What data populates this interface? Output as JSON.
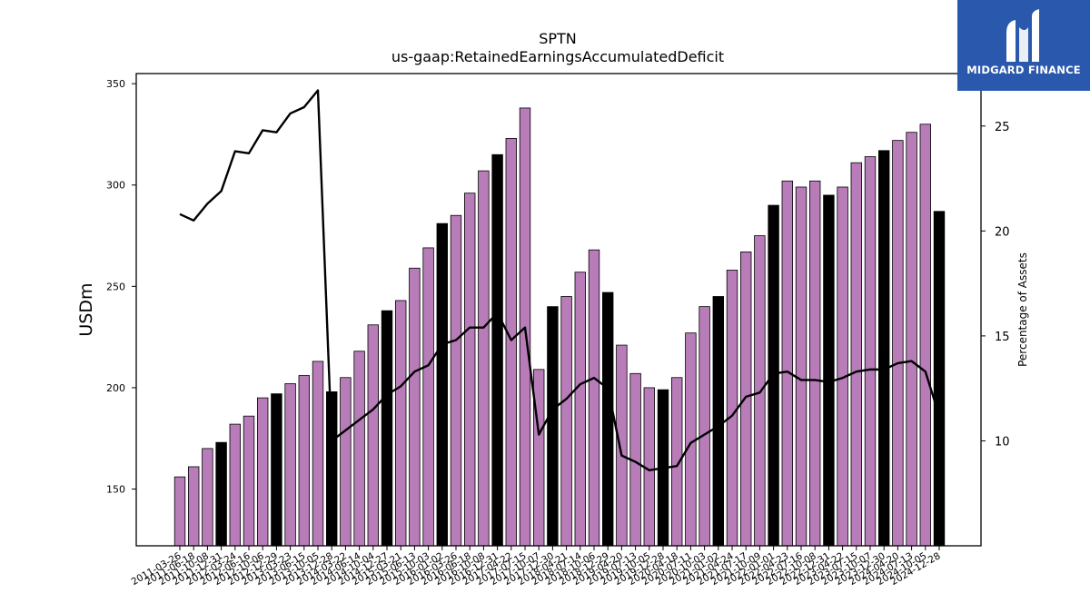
{
  "brand": {
    "name": "MIDGARD FINANCE",
    "logo_color": "#2a58ad"
  },
  "chart_data": {
    "type": "bar",
    "title": "SPTN",
    "subtitle": "us-gaap:RetainedEarningsAccumulatedDeficit",
    "ylabel": "USDm",
    "y2label": "Percentage of Assets",
    "ylim": [
      122,
      355
    ],
    "y2lim": [
      5.0,
      27.5
    ],
    "yticks": [
      150,
      200,
      250,
      300,
      350
    ],
    "y2ticks": [
      10,
      15,
      20,
      25
    ],
    "bar_colors": {
      "quarter": "#b87cb9",
      "year_end": "#000000"
    },
    "categories": [
      "2011-03-26",
      "2011-06-18",
      "2011-10-08",
      "2011-12-31",
      "2012-03-24",
      "2012-06-16",
      "2012-10-06",
      "2012-12-29",
      "2013-03-23",
      "2013-06-15",
      "2013-10-05",
      "2013-12-28",
      "2014-03-22",
      "2014-06-14",
      "2014-10-04",
      "2014-12-27",
      "2015-03-21",
      "2015-06-13",
      "2015-10-03",
      "2016-01-02",
      "2016-03-26",
      "2016-06-18",
      "2016-10-08",
      "2016-12-31",
      "2017-04-22",
      "2017-07-15",
      "2017-10-07",
      "2017-12-30",
      "2018-04-21",
      "2018-07-14",
      "2018-10-06",
      "2018-12-29",
      "2019-04-20",
      "2019-07-13",
      "2019-10-05",
      "2019-12-28",
      "2020-04-18",
      "2020-07-11",
      "2020-10-03",
      "2021-01-02",
      "2021-04-24",
      "2021-07-17",
      "2021-10-09",
      "2022-01-01",
      "2022-04-23",
      "2022-07-16",
      "2022-10-08",
      "2022-12-31",
      "2023-04-22",
      "2023-07-15",
      "2023-10-07",
      "2023-12-30",
      "2024-04-20",
      "2024-07-13",
      "2024-10-05",
      "2024-12-28"
    ],
    "xtick_labels": [
      "2011-03-26",
      "2011-06-18",
      "2011-10-08",
      "2011-12-31",
      "2012-03-24",
      "2012-06-16",
      "2012-10-06",
      "2012-12-29",
      "2013-03-23",
      "2013-06-15",
      "2013-10-05",
      "2013-12-28",
      "2014-03-22",
      "2014-06-14",
      "2014-10-04",
      "2014-12-27",
      "2015-03-21",
      "2015-06-13",
      "2015-10-03",
      "2016-01-02",
      "2016-03-26",
      "2016-06-18",
      "2016-10-08",
      "2016-12-31",
      "2017-04-22",
      "2017-07-15",
      "2017-10-07",
      "2017-12-30",
      "2018-04-21",
      "2018-07-14",
      "2018-10-06",
      "2018-12-29",
      "2019-04-20",
      "2019-07-13",
      "2019-10-05",
      "2019-12-28",
      "2020-04-18",
      "2020-07-11",
      "2020-10-03",
      "2021-01-02",
      "2021-04-24",
      "2021-07-17",
      "2021-10-09",
      "2022-01-01",
      "2022-04-23",
      "2022-07-16",
      "2022-10-08",
      "2022-12-31",
      "2023-04-22",
      "2023-07-15",
      "2023-10-07",
      "2023-12-30",
      "2024-04-20",
      "2024-07-13",
      "2024-10-05",
      "2024-12-28"
    ],
    "values": [
      156,
      161,
      170,
      173,
      182,
      186,
      195,
      197,
      202,
      206,
      213,
      198,
      205,
      218,
      231,
      238,
      243,
      259,
      269,
      281,
      285,
      296,
      307,
      315,
      323,
      338,
      209,
      240,
      245,
      257,
      268,
      247,
      221,
      207,
      200,
      199,
      205,
      227,
      240,
      245,
      258,
      267,
      275,
      290,
      302,
      299,
      302,
      295,
      299,
      311,
      314,
      317,
      322,
      326,
      330,
      287
    ],
    "year_end": [
      false,
      false,
      false,
      true,
      false,
      false,
      false,
      true,
      false,
      false,
      false,
      true,
      false,
      false,
      false,
      true,
      false,
      false,
      false,
      true,
      false,
      false,
      false,
      true,
      false,
      false,
      false,
      true,
      false,
      false,
      false,
      true,
      false,
      false,
      false,
      true,
      false,
      false,
      false,
      true,
      false,
      false,
      false,
      true,
      false,
      false,
      false,
      true,
      false,
      false,
      false,
      true,
      false,
      false,
      false,
      true
    ],
    "line": {
      "name": "Percentage of Assets",
      "color": "#000000",
      "values": [
        20.8,
        20.5,
        21.3,
        21.9,
        23.8,
        23.7,
        24.8,
        24.7,
        25.6,
        25.9,
        26.7,
        10.0,
        10.5,
        11.0,
        11.5,
        12.2,
        12.6,
        13.3,
        13.6,
        14.6,
        14.8,
        15.4,
        15.4,
        16.1,
        14.8,
        15.4,
        10.3,
        11.5,
        12.0,
        12.7,
        13.0,
        12.5,
        9.3,
        9.0,
        8.6,
        8.7,
        8.8,
        9.9,
        10.3,
        10.7,
        11.2,
        12.1,
        12.3,
        13.2,
        13.3,
        12.9,
        12.9,
        12.8,
        13.0,
        13.3,
        13.4,
        13.4,
        13.7,
        13.8,
        13.3,
        11.2
      ]
    }
  }
}
